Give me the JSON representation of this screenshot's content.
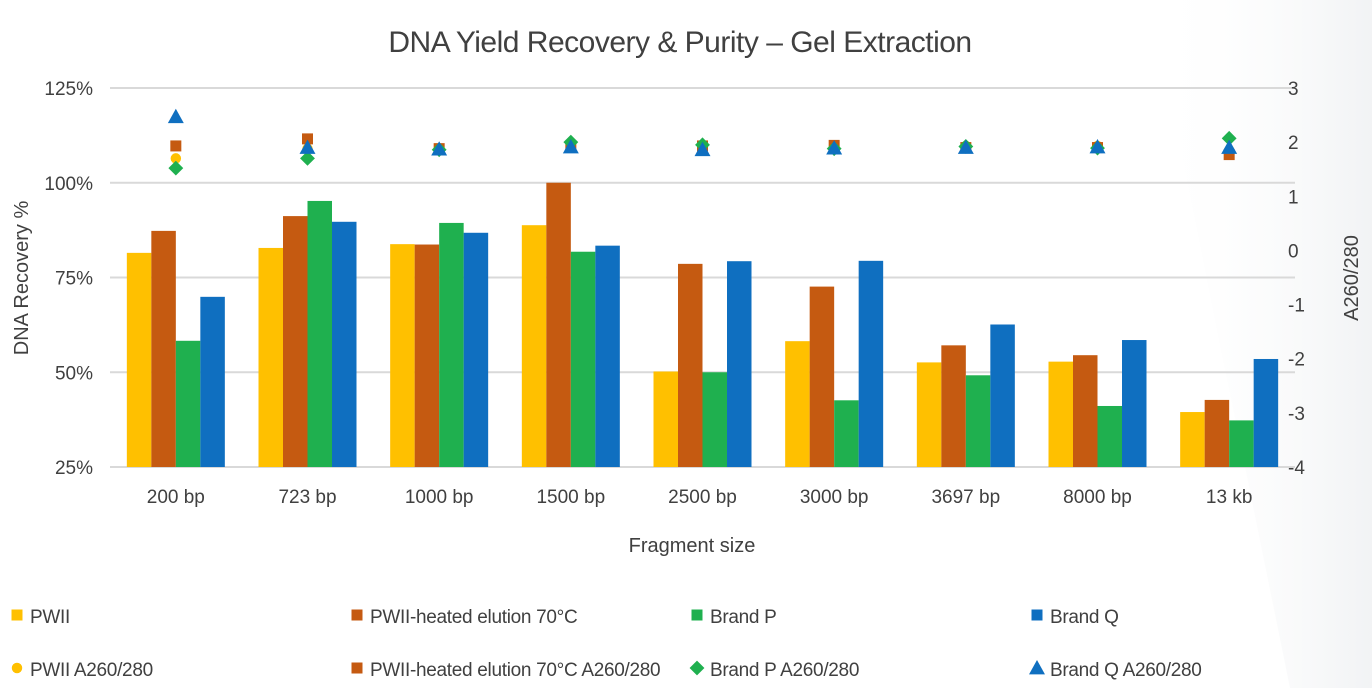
{
  "chart_data": {
    "type": "bar",
    "title": "DNA Yield Recovery & Purity – Gel Extraction",
    "xlabel": "Fragment size",
    "ylabel": "DNA Recovery %",
    "y2label": "A260/280",
    "categories": [
      "200 bp",
      "723 bp",
      "1000 bp",
      "1500 bp",
      "2500 bp",
      "3000 bp",
      "3697 bp",
      "8000 bp",
      "13 kb"
    ],
    "ylim": [
      25,
      125
    ],
    "y2lim": [
      -4,
      3
    ],
    "yticks": [
      "25%",
      "50%",
      "75%",
      "100%",
      "125%"
    ],
    "y2ticks": [
      "-4",
      "-3",
      "-2",
      "-1",
      "0",
      "1",
      "2",
      "3"
    ],
    "grid": true,
    "legend_position": "bottom",
    "series": [
      {
        "name": "PWII",
        "type": "bar",
        "axis": "left",
        "color": "#FFC000",
        "values": [
          81.5,
          82.8,
          83.8,
          88.8,
          50.2,
          58.2,
          52.6,
          52.8,
          39.5
        ]
      },
      {
        "name": "PWII-heated elution 70°C",
        "type": "bar",
        "axis": "left",
        "color": "#C55A11",
        "values": [
          87.3,
          91.2,
          83.7,
          100.0,
          78.6,
          72.6,
          57.1,
          54.5,
          42.7
        ]
      },
      {
        "name": "Brand P",
        "type": "bar",
        "axis": "left",
        "color": "#1FB04F",
        "values": [
          58.3,
          95.2,
          89.4,
          81.8,
          50.0,
          42.6,
          49.2,
          41.1,
          37.3
        ]
      },
      {
        "name": "Brand Q",
        "type": "bar",
        "axis": "left",
        "color": "#0F6FC0",
        "values": [
          69.9,
          89.7,
          86.8,
          83.4,
          79.3,
          79.4,
          62.6,
          58.5,
          53.5
        ]
      },
      {
        "name": "PWII A260/280",
        "type": "scatter",
        "marker": "circle",
        "axis": "right",
        "color": "#FFC000",
        "values": [
          1.7,
          1.88,
          1.86,
          1.92,
          1.93,
          1.94,
          1.93,
          1.93,
          1.85
        ]
      },
      {
        "name": "PWII-heated elution 70°C A260/280",
        "type": "scatter",
        "marker": "square",
        "axis": "right",
        "color": "#C55A11",
        "values": [
          1.93,
          2.06,
          1.88,
          1.91,
          1.93,
          1.94,
          1.9,
          1.9,
          1.77
        ]
      },
      {
        "name": "Brand P A260/280",
        "type": "scatter",
        "marker": "diamond",
        "axis": "right",
        "color": "#1FB04F",
        "values": [
          1.52,
          1.7,
          1.86,
          2.0,
          1.95,
          1.88,
          1.92,
          1.89,
          2.07
        ]
      },
      {
        "name": "Brand Q A260/280",
        "type": "scatter",
        "marker": "triangle",
        "axis": "right",
        "color": "#0F6FC0",
        "values": [
          2.47,
          1.9,
          1.87,
          1.91,
          1.86,
          1.89,
          1.9,
          1.91,
          1.9
        ]
      }
    ]
  }
}
